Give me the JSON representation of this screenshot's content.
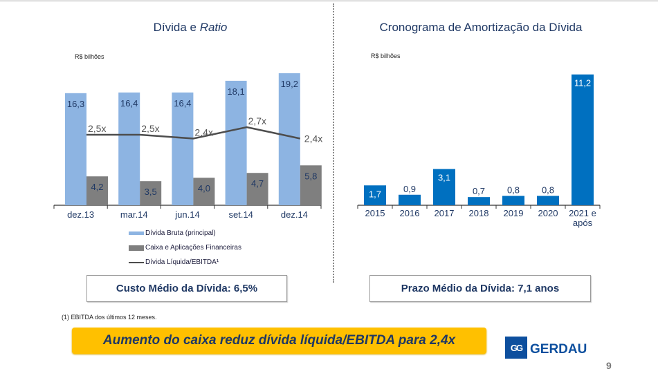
{
  "slide": {
    "page_number": "9",
    "banner": "Aumento do caixa reduz dívida líquida/EBITDA para 2,4x",
    "footnote": "(1) EBITDA dos últimos 12 meses.",
    "logo_mark": "GG",
    "logo_text": "GERDAU",
    "left_kpi": "Custo Médio da Dívida: 6,5%",
    "right_kpi": "Prazo Médio da Dívida: 7,1 anos"
  },
  "colors": {
    "gross_debt": "#8db4e2",
    "cash": "#7f7f7f",
    "ratio_line": "#4d4d4d",
    "amortization": "#0070c0",
    "title": "#1f3864",
    "banner": "#ffc000",
    "brand": "#0d4f9e"
  },
  "chart_data": [
    {
      "type": "bar",
      "title_main": "Dívida e ",
      "title_italic": "Ratio",
      "unit_label": "R$ bilhões",
      "categories": [
        "dez.13",
        "mar.14",
        "jun.14",
        "set.14",
        "dez.14"
      ],
      "series": [
        {
          "name": "Dívida Bruta (principal)",
          "kind": "bar",
          "values": [
            16.3,
            16.4,
            16.4,
            18.1,
            19.2
          ],
          "labels": [
            "16,3",
            "16,4",
            "16,4",
            "18,1",
            "19,2"
          ]
        },
        {
          "name": "Caixa e Aplicações Financeiras",
          "kind": "bar",
          "values": [
            4.2,
            3.5,
            4.0,
            4.7,
            5.8
          ],
          "labels": [
            "4,2",
            "3,5",
            "4,0",
            "4,7",
            "5,8"
          ]
        },
        {
          "name": "Dívida Líquida/EBITDA¹",
          "kind": "line",
          "values": [
            2.5,
            2.5,
            2.4,
            2.7,
            2.4
          ],
          "labels": [
            "2,5x",
            "2,5x",
            "2,4x",
            "2,7x",
            "2,4x"
          ]
        }
      ],
      "legend": [
        "Dívida Bruta (principal)",
        "Caixa e Aplicações Financeiras",
        "Dívida Líquida/EBITDA¹"
      ],
      "legend_position": "bottom",
      "ylim": [
        0,
        20
      ],
      "grid": false
    },
    {
      "type": "bar",
      "title": "Cronograma de Amortização da Dívida",
      "unit_label": "R$ bilhões",
      "categories": [
        "2015",
        "2016",
        "2017",
        "2018",
        "2019",
        "2020",
        "2021 e após"
      ],
      "category_lines": [
        [
          "2015"
        ],
        [
          "2016"
        ],
        [
          "2017"
        ],
        [
          "2018"
        ],
        [
          "2019"
        ],
        [
          "2020"
        ],
        [
          "2021 e",
          "após"
        ]
      ],
      "values": [
        1.7,
        0.9,
        3.1,
        0.7,
        0.8,
        0.8,
        11.2
      ],
      "labels": [
        "1,7",
        "0,9",
        "3,1",
        "0,7",
        "0,8",
        "0,8",
        "11,2"
      ],
      "ylim": [
        0,
        11.7
      ],
      "grid": false
    }
  ]
}
